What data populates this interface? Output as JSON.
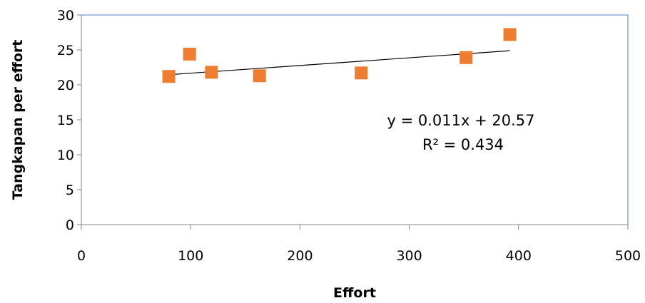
{
  "chart_data": {
    "type": "scatter",
    "xlabel": "Effort",
    "ylabel": "Tangkapan per effort",
    "xlim": [
      0,
      500
    ],
    "ylim": [
      0,
      30
    ],
    "xticks": [
      0,
      100,
      200,
      300,
      400,
      500
    ],
    "yticks": [
      0,
      5,
      10,
      15,
      20,
      25,
      30
    ],
    "series": [
      {
        "marker": "square",
        "color": "#ED7D31",
        "points": [
          {
            "x": 80,
            "y": 21.2
          },
          {
            "x": 99,
            "y": 24.4
          },
          {
            "x": 119,
            "y": 21.8
          },
          {
            "x": 163,
            "y": 21.3
          },
          {
            "x": 256,
            "y": 21.7
          },
          {
            "x": 352,
            "y": 23.9
          },
          {
            "x": 392,
            "y": 27.2
          }
        ]
      }
    ],
    "trendline": {
      "slope": 0.011,
      "intercept": 20.57,
      "x_start": 80,
      "x_end": 392,
      "color": "#000000",
      "equation_label": "y = 0.011x + 20.57",
      "r2_label": "R² = 0.434"
    },
    "grid": false,
    "plot_border_color": "#4F81BD",
    "legend": "none"
  }
}
